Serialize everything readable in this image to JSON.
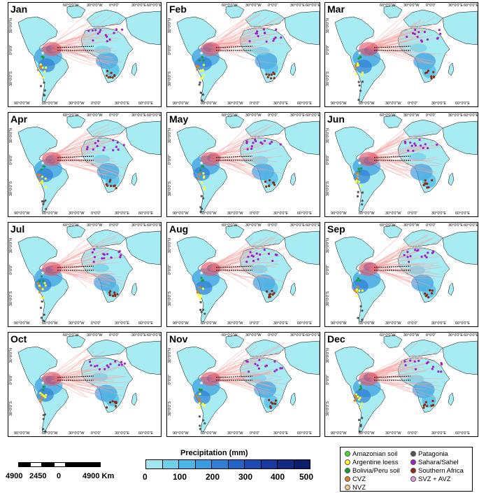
{
  "months": [
    "Jan",
    "Feb",
    "Mar",
    "Apr",
    "May",
    "Jun",
    "Jul",
    "Aug",
    "Sep",
    "Oct",
    "Nov",
    "Dec"
  ],
  "lon_ticks": [
    "90°0'0\"W",
    "60°0'0\"W",
    "30°0'0\"W",
    "0°0'0\"",
    "30°0'0\"E",
    "60°0'0\"E"
  ],
  "lat_ticks": [
    "30°0'0\"N",
    "0°0'0\"",
    "30°0'0\"S"
  ],
  "scalebar": {
    "labels": [
      "4900",
      "2450",
      "0",
      "4900 Km"
    ]
  },
  "colorbar": {
    "title": "Precipitation (mm)",
    "labels": [
      "0",
      "100",
      "200",
      "300",
      "400",
      "500"
    ],
    "colors": [
      "#9fe6ef",
      "#6fd0ea",
      "#4cb6e6",
      "#3b9be0",
      "#2f7fd4",
      "#2564c6",
      "#1c4bb3",
      "#173a9c",
      "#122a84",
      "#0c1d6c"
    ]
  },
  "colors": {
    "ocean": "#ffffff",
    "land": "#a6ecf2",
    "trajectory": "#f7a3a0",
    "border": "#000000"
  },
  "legend": [
    {
      "label": "Amazonian soil",
      "color": "#46e02a",
      "icon": "green-dot-icon"
    },
    {
      "label": "Patagonia",
      "color": "#555555",
      "icon": "gray-dot-icon"
    },
    {
      "label": "Argentine loess",
      "color": "#ffff33",
      "icon": "yellow-dot-icon"
    },
    {
      "label": "Sahara/Sahel",
      "color": "#a020c8",
      "icon": "purple-dot-icon"
    },
    {
      "label": "Bolivia/Peru soil",
      "color": "#1a9c3a",
      "icon": "darkgreen-dot-icon"
    },
    {
      "label": "Southern Africa",
      "color": "#8b2a10",
      "icon": "brown-dot-icon"
    },
    {
      "label": "CVZ",
      "color": "#e08020",
      "icon": "orange-dot-icon"
    },
    {
      "label": "SVZ + AVZ",
      "color": "#e09ae0",
      "icon": "pink-dot-icon"
    },
    {
      "label": "NVZ",
      "color": "#f8c890",
      "icon": "peach-dot-icon"
    }
  ]
}
